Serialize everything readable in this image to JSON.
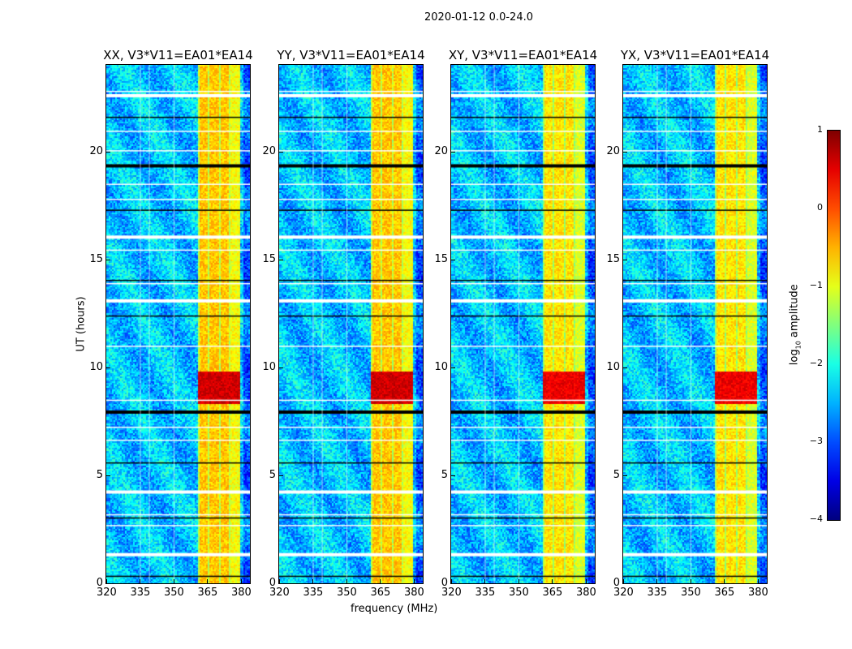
{
  "chart_data": {
    "type": "heatmap",
    "title": "2020-01-12 0.0-24.0",
    "xlabel": "frequency (MHz)",
    "ylabel": "UT (hours)",
    "xlim": [
      320,
      384
    ],
    "ylim": [
      0,
      24
    ],
    "xticks": [
      320,
      335,
      350,
      365,
      380
    ],
    "yticks": [
      0,
      5,
      10,
      15,
      20
    ],
    "panels": [
      {
        "title": "XX, V3*V11=EA01*EA14"
      },
      {
        "title": "YY, V3*V11=EA01*EA14"
      },
      {
        "title": "XY, V3*V11=EA01*EA14"
      },
      {
        "title": "YX, V3*V11=EA01*EA14"
      }
    ],
    "colorbar": {
      "label": "log10 amplitude",
      "label_main": "log",
      "label_sub": "10",
      "label_rest": " amplitude",
      "colormap": "jet",
      "range": [
        -4,
        1
      ],
      "ticks": [
        "1",
        "0",
        "−1",
        "−2",
        "−3",
        "−4"
      ]
    },
    "structure": {
      "noise_floor_log10": -2.4,
      "rfi_band_mhz": [
        360.5,
        379.5
      ],
      "rfi_band_level_log10": -0.6,
      "peak_ut_hours": [
        8.3,
        9.8
      ],
      "peak_level_log10": 0.6,
      "flagged_ut_hours": [
        0.35,
        1.4,
        2.7,
        3.05,
        3.2,
        4.3,
        5.6,
        6.65,
        7.25,
        8.0,
        8.5,
        11.0,
        12.4,
        13.15,
        13.9,
        14.05,
        15.45,
        16.1,
        17.3,
        17.8,
        18.5,
        19.4,
        20.05,
        20.95,
        21.6,
        22.65,
        22.8
      ]
    }
  }
}
